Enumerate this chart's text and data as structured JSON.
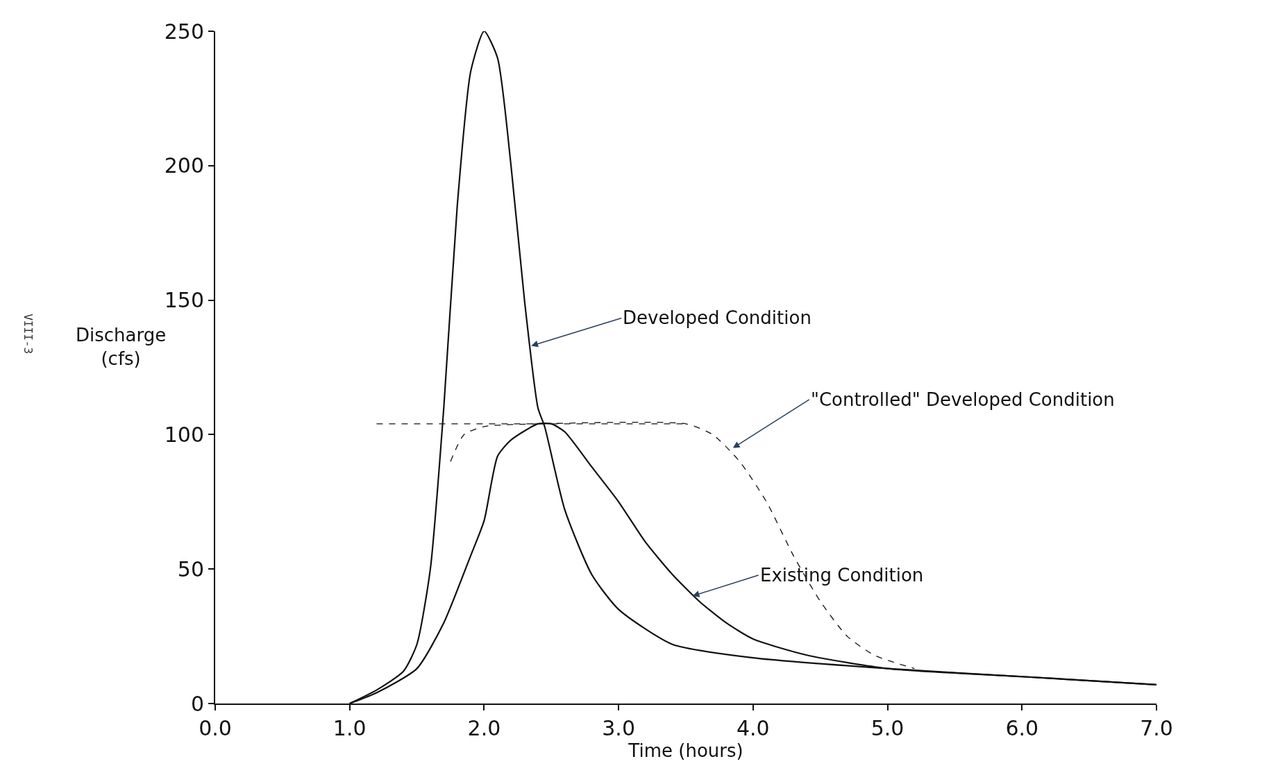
{
  "chart_data": {
    "type": "line",
    "xlabel": "Time (hours)",
    "ylabel": "Discharge\n(cfs)",
    "xlim": [
      0,
      7
    ],
    "ylim": [
      0,
      250
    ],
    "xticks": [
      {
        "value": 0,
        "label": "0.0"
      },
      {
        "value": 1,
        "label": "1.0"
      },
      {
        "value": 2,
        "label": "2.0"
      },
      {
        "value": 3,
        "label": "3.0"
      },
      {
        "value": 4,
        "label": "4.0"
      },
      {
        "value": 5,
        "label": "5.0"
      },
      {
        "value": 6,
        "label": "6.0"
      },
      {
        "value": 7,
        "label": "7.0"
      }
    ],
    "yticks": [
      0,
      50,
      100,
      150,
      200,
      250
    ],
    "marker": "none",
    "series": [
      {
        "color": "#111111",
        "line_style": "solid",
        "x": [
          1.0,
          1.2,
          1.4,
          1.5,
          1.6,
          1.7,
          1.8,
          1.9,
          2.0,
          2.1,
          2.2,
          2.3,
          2.4,
          2.45,
          2.6,
          2.8,
          3.0,
          3.4,
          4.0,
          5.0,
          6.0,
          7.0
        ],
        "values": [
          0,
          5,
          12,
          22,
          50,
          110,
          185,
          235,
          250,
          240,
          200,
          150,
          110,
          103,
          72,
          48,
          35,
          22,
          17,
          13,
          10,
          7
        ]
      },
      {
        "color": "#111111",
        "line_style": "solid",
        "x": [
          1.0,
          1.2,
          1.5,
          1.7,
          1.9,
          2.0,
          2.1,
          2.2,
          2.4,
          2.5,
          2.6,
          2.8,
          3.0,
          3.2,
          3.4,
          3.6,
          3.8,
          4.0,
          4.4,
          5.0,
          6.0,
          7.0
        ],
        "values": [
          0,
          4,
          13,
          30,
          55,
          68,
          92,
          98,
          104,
          104,
          101,
          88,
          75,
          60,
          48,
          38,
          30,
          24,
          18,
          13,
          10,
          7
        ]
      },
      {
        "color": "#111111",
        "line_style": "dashed",
        "x": [
          1.75,
          1.85,
          2.0,
          2.4,
          3.5,
          3.7,
          3.9,
          4.1,
          4.3,
          4.5,
          4.7,
          4.9,
          5.2
        ],
        "values": [
          90,
          100,
          103,
          104,
          104,
          100,
          90,
          75,
          55,
          38,
          25,
          18,
          13
        ]
      },
      {
        "color": "#111111",
        "line_style": "dashed",
        "x": [
          1.2,
          3.5
        ],
        "values": [
          104,
          104
        ]
      }
    ],
    "annotations": [
      {
        "text": "Developed Condition",
        "x": 2.35,
        "y": 133
      },
      {
        "text": "\"Controlled\" Developed Condition",
        "x": 3.85,
        "y": 95
      },
      {
        "text": "Existing Condition",
        "x": 3.55,
        "y": 40
      },
      "VIII-3"
    ]
  }
}
